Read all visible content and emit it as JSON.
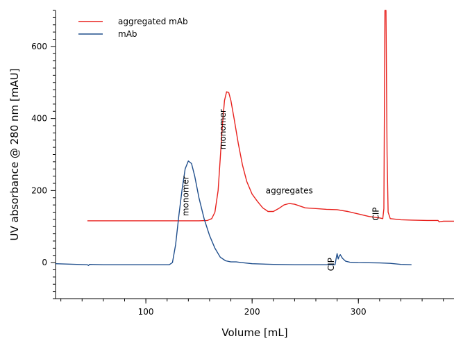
{
  "chart_data": {
    "type": "line",
    "title": "",
    "xlabel": "Volume [mL]",
    "ylabel": "UV absorbance @ 280 nm [mAU]",
    "xlim": [
      15,
      390
    ],
    "ylim": [
      -100,
      700
    ],
    "x_ticks": [
      100,
      200,
      300
    ],
    "y_ticks": [
      0,
      200,
      400,
      600
    ],
    "grid": false,
    "legend_placement": "top-left",
    "series": [
      {
        "name": "aggregated mAb",
        "color": "#e8211d",
        "points": [
          [
            45,
            116
          ],
          [
            80,
            116
          ],
          [
            120,
            116
          ],
          [
            150,
            116
          ],
          [
            158,
            117
          ],
          [
            162,
            122
          ],
          [
            165,
            140
          ],
          [
            168,
            200
          ],
          [
            170,
            290
          ],
          [
            172,
            380
          ],
          [
            174,
            450
          ],
          [
            176,
            474
          ],
          [
            178,
            472
          ],
          [
            180,
            450
          ],
          [
            183,
            400
          ],
          [
            187,
            330
          ],
          [
            191,
            270
          ],
          [
            195,
            225
          ],
          [
            200,
            190
          ],
          [
            205,
            170
          ],
          [
            210,
            152
          ],
          [
            215,
            142
          ],
          [
            220,
            142
          ],
          [
            225,
            150
          ],
          [
            230,
            160
          ],
          [
            235,
            164
          ],
          [
            240,
            162
          ],
          [
            250,
            152
          ],
          [
            260,
            150
          ],
          [
            270,
            148
          ],
          [
            280,
            147
          ],
          [
            290,
            142
          ],
          [
            300,
            135
          ],
          [
            310,
            128
          ],
          [
            320,
            124
          ],
          [
            323,
            122
          ],
          [
            324,
            150
          ],
          [
            325,
            700
          ],
          [
            326,
            700
          ],
          [
            327,
            300
          ],
          [
            328,
            140
          ],
          [
            330,
            122
          ],
          [
            340,
            119
          ],
          [
            350,
            118
          ],
          [
            365,
            117
          ],
          [
            375,
            117
          ],
          [
            376,
            113
          ],
          [
            380,
            115
          ],
          [
            390,
            115
          ]
        ]
      },
      {
        "name": "mAb",
        "color": "#1f4e8c",
        "points": [
          [
            15,
            -3
          ],
          [
            45,
            -6
          ],
          [
            46,
            -8
          ],
          [
            47,
            -5
          ],
          [
            60,
            -6
          ],
          [
            80,
            -6
          ],
          [
            100,
            -6
          ],
          [
            115,
            -6
          ],
          [
            122,
            -6
          ],
          [
            125,
            0
          ],
          [
            128,
            50
          ],
          [
            131,
            130
          ],
          [
            134,
            200
          ],
          [
            137,
            260
          ],
          [
            140,
            282
          ],
          [
            143,
            275
          ],
          [
            146,
            240
          ],
          [
            150,
            180
          ],
          [
            155,
            120
          ],
          [
            160,
            75
          ],
          [
            165,
            40
          ],
          [
            170,
            15
          ],
          [
            175,
            5
          ],
          [
            180,
            2
          ],
          [
            185,
            2
          ],
          [
            190,
            0
          ],
          [
            200,
            -3
          ],
          [
            220,
            -5
          ],
          [
            240,
            -6
          ],
          [
            260,
            -6
          ],
          [
            270,
            -6
          ],
          [
            278,
            -6
          ],
          [
            279,
            10
          ],
          [
            280,
            25
          ],
          [
            281,
            10
          ],
          [
            282,
            18
          ],
          [
            283,
            22
          ],
          [
            285,
            12
          ],
          [
            288,
            4
          ],
          [
            292,
            1
          ],
          [
            300,
            0
          ],
          [
            320,
            -1
          ],
          [
            330,
            -2
          ],
          [
            340,
            -5
          ],
          [
            350,
            -6
          ]
        ]
      }
    ],
    "annotations": [
      {
        "text": "monomer",
        "x": 140,
        "y": 185,
        "rotate": -90
      },
      {
        "text": "monomer",
        "x": 175,
        "y": 370,
        "rotate": -90
      },
      {
        "text": "aggregates",
        "x": 235,
        "y": 192,
        "rotate": 0
      },
      {
        "text": "CIP",
        "x": 319,
        "y": 135,
        "rotate": -90
      },
      {
        "text": "CIP",
        "x": 277,
        "y": -5,
        "rotate": -90
      }
    ]
  }
}
